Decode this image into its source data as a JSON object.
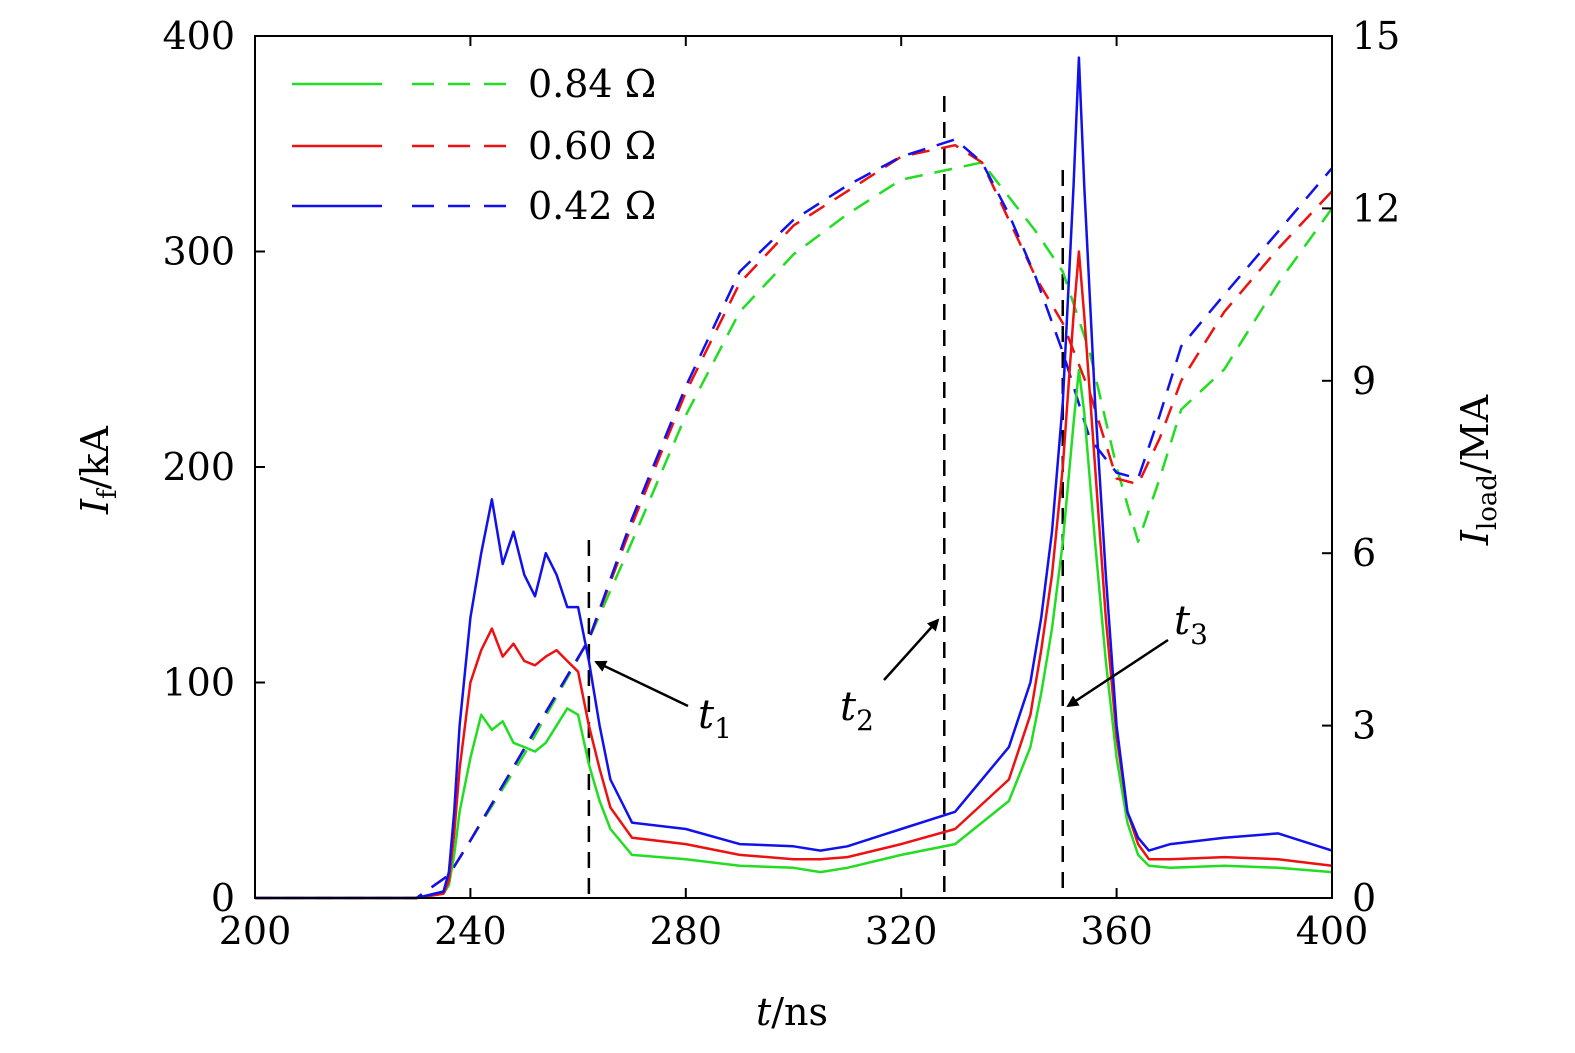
{
  "chart_data": {
    "type": "line",
    "xlabel": {
      "main": "t",
      "unit": "/ns"
    },
    "ylabel_left": {
      "main": "I",
      "sub": "f",
      "unit": "/kA"
    },
    "ylabel_right": {
      "main": "I",
      "sub": "load",
      "unit": "/MA"
    },
    "xlim": [
      200,
      400
    ],
    "ylim_left": [
      0,
      400
    ],
    "ylim_right": [
      0,
      15
    ],
    "x_ticks": [
      "200",
      "240",
      "280",
      "320",
      "360",
      "400"
    ],
    "y_ticks_left": [
      "0",
      "100",
      "200",
      "300",
      "400"
    ],
    "y_ticks_right": [
      "0",
      "3",
      "6",
      "9",
      "12",
      "15"
    ],
    "grid": false,
    "legend_position": "top-left",
    "legend": [
      {
        "label": "0.84 Ω",
        "color": "#22dd22"
      },
      {
        "label": "0.60 Ω",
        "color": "#ee1111"
      },
      {
        "label": "0.42 Ω",
        "color": "#1111ee"
      }
    ],
    "series": [
      {
        "name": "0.84 Ω",
        "axis": "left",
        "style": "solid",
        "color": "#22dd22",
        "x": [
          200,
          230,
          235,
          236,
          237,
          238,
          240,
          242,
          244,
          246,
          248,
          250,
          252,
          254,
          256,
          258,
          260,
          262,
          264,
          266,
          270,
          280,
          290,
          300,
          305,
          310,
          320,
          330,
          340,
          344,
          346,
          348,
          350,
          352,
          353,
          354,
          356,
          358,
          360,
          362,
          364,
          366,
          370,
          380,
          390,
          400
        ],
        "y": [
          0,
          0,
          2,
          6,
          20,
          40,
          65,
          85,
          78,
          82,
          72,
          70,
          68,
          72,
          80,
          88,
          85,
          62,
          45,
          32,
          20,
          18,
          15,
          14,
          12,
          14,
          20,
          25,
          45,
          70,
          95,
          125,
          165,
          220,
          245,
          225,
          165,
          110,
          65,
          35,
          20,
          15,
          14,
          15,
          14,
          12
        ]
      },
      {
        "name": "0.60 Ω",
        "axis": "left",
        "style": "solid",
        "color": "#ee1111",
        "x": [
          200,
          230,
          235,
          236,
          237,
          238,
          240,
          242,
          244,
          246,
          248,
          250,
          252,
          254,
          256,
          258,
          260,
          262,
          264,
          266,
          270,
          280,
          290,
          300,
          305,
          310,
          320,
          330,
          340,
          344,
          346,
          348,
          350,
          352,
          353,
          354,
          356,
          358,
          360,
          362,
          364,
          366,
          370,
          380,
          390,
          400
        ],
        "y": [
          0,
          0,
          2,
          8,
          30,
          60,
          100,
          115,
          125,
          112,
          118,
          110,
          108,
          112,
          115,
          110,
          105,
          80,
          60,
          42,
          28,
          25,
          20,
          18,
          18,
          19,
          25,
          32,
          55,
          85,
          115,
          150,
          200,
          270,
          300,
          270,
          200,
          130,
          75,
          40,
          25,
          18,
          18,
          19,
          18,
          15
        ]
      },
      {
        "name": "0.42 Ω",
        "axis": "left",
        "style": "solid",
        "color": "#1111ee",
        "x": [
          200,
          230,
          235,
          236,
          237,
          238,
          240,
          242,
          244,
          246,
          248,
          250,
          252,
          254,
          256,
          258,
          260,
          262,
          264,
          266,
          270,
          280,
          290,
          300,
          305,
          310,
          320,
          330,
          340,
          344,
          346,
          348,
          350,
          352,
          353,
          354,
          356,
          358,
          360,
          362,
          364,
          366,
          370,
          380,
          390,
          400
        ],
        "y": [
          0,
          0,
          3,
          12,
          40,
          80,
          130,
          160,
          185,
          155,
          170,
          150,
          140,
          160,
          150,
          135,
          135,
          110,
          80,
          55,
          35,
          32,
          25,
          24,
          22,
          24,
          32,
          40,
          70,
          100,
          130,
          170,
          230,
          330,
          390,
          330,
          230,
          150,
          80,
          40,
          28,
          22,
          25,
          28,
          30,
          22
        ]
      },
      {
        "name": "0.84 Ω",
        "axis": "right",
        "style": "dashed",
        "color": "#22dd22",
        "x": [
          200,
          230,
          236,
          240,
          250,
          262,
          270,
          280,
          290,
          300,
          310,
          320,
          330,
          335,
          340,
          345,
          350,
          355,
          360,
          364,
          368,
          372,
          380,
          390,
          400
        ],
        "y": [
          0,
          0,
          0.4,
          1.0,
          2.5,
          4.5,
          6.2,
          8.4,
          10.2,
          11.2,
          11.9,
          12.5,
          12.7,
          12.8,
          12.2,
          11.6,
          10.9,
          9.5,
          7.5,
          6.2,
          7.3,
          8.5,
          9.2,
          10.7,
          12.0
        ]
      },
      {
        "name": "0.60 Ω",
        "axis": "right",
        "style": "dashed",
        "color": "#ee1111",
        "x": [
          200,
          230,
          236,
          240,
          250,
          262,
          270,
          280,
          290,
          300,
          310,
          320,
          330,
          335,
          340,
          345,
          350,
          355,
          360,
          364,
          368,
          372,
          380,
          390,
          400
        ],
        "y": [
          0,
          0,
          0.4,
          1.0,
          2.6,
          4.5,
          6.5,
          8.8,
          10.7,
          11.7,
          12.3,
          12.9,
          13.1,
          12.8,
          11.8,
          10.8,
          10.0,
          8.8,
          7.3,
          7.2,
          8.0,
          9.0,
          10.2,
          11.3,
          12.3
        ]
      },
      {
        "name": "0.42 Ω",
        "axis": "right",
        "style": "dashed",
        "color": "#1111ee",
        "x": [
          200,
          230,
          236,
          240,
          250,
          262,
          270,
          280,
          290,
          300,
          310,
          320,
          330,
          335,
          340,
          345,
          350,
          355,
          360,
          364,
          368,
          372,
          380,
          390,
          400
        ],
        "y": [
          0,
          0,
          0.4,
          1.0,
          2.6,
          4.5,
          6.6,
          8.9,
          10.9,
          11.8,
          12.4,
          12.9,
          13.2,
          12.8,
          11.9,
          10.8,
          9.5,
          8.0,
          7.4,
          7.3,
          8.4,
          9.6,
          10.5,
          11.6,
          12.7
        ]
      }
    ],
    "markers": [
      {
        "x": 262,
        "label": "t",
        "sub": "1"
      },
      {
        "x": 328,
        "label": "t",
        "sub": "2"
      },
      {
        "x": 350,
        "label": "t",
        "sub": "3"
      }
    ]
  }
}
